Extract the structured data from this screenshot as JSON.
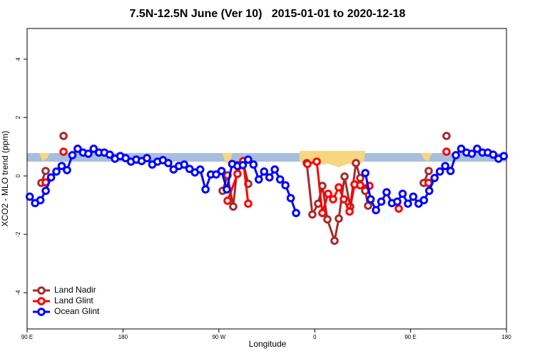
{
  "chart_data": {
    "type": "line",
    "title": "7.5N-12.5N June (Ver 10)   2015-01-01 to 2020-12-18",
    "x_label": "Longitude",
    "y_label": "XCO2 - MLO trend (ppm)",
    "xlim": [
      90,
      540
    ],
    "ylim": [
      -5.24,
      5.05
    ],
    "xticks": [
      {
        "value": 90,
        "label": "90 E"
      },
      {
        "value": 180,
        "label": "180"
      },
      {
        "value": 270,
        "label": "90 W"
      },
      {
        "value": 360,
        "label": "0"
      },
      {
        "value": 450,
        "label": "90 E"
      },
      {
        "value": 540,
        "label": "180"
      }
    ],
    "yticks": [
      -4,
      -2,
      0,
      2,
      4
    ],
    "legend": "bottom-left",
    "series": [
      {
        "name": "Land Nadir",
        "color": "#a52a2a",
        "x": [
          103.4,
          107.4,
          116,
          124.2,
          200,
          273.5,
          278.2,
          283.5,
          287.5,
          292.9,
          297.6,
          325,
          352.5,
          357.8,
          363.2,
          367.2,
          371.9,
          378.6,
          382.6,
          388,
          393.3,
          398.7,
          402.7,
          407.4,
          410.1,
          430,
          462.3,
          467,
          475,
          483.7
        ],
        "values": [
          -0.24,
          0.17,
          null,
          1.37,
          null,
          -0.51,
          0.02,
          -1.05,
          0.37,
          0.46,
          -0.27,
          null,
          0.44,
          -1.32,
          -0.95,
          -0.34,
          -1.49,
          -2.22,
          -1.46,
          -0.02,
          -1.05,
          0.44,
          -0.07,
          -0.51,
          -1.02,
          null,
          -0.24,
          0.17,
          null,
          1.37
        ]
      },
      {
        "name": "Land Glint",
        "color": "#ff0000",
        "x": [
          107.4,
          116,
          124.2,
          200,
          278.2,
          287.5,
          292.9,
          297.6,
          325,
          353.2,
          361.9,
          367.2,
          372.6,
          377.3,
          382.6,
          387.3,
          392.7,
          397.4,
          402.7,
          411.4,
          425,
          438.9,
          450,
          466.9,
          475,
          483.7
        ],
        "values": [
          -0.22,
          null,
          0.83,
          null,
          -0.85,
          0.07,
          0.51,
          -0.95,
          null,
          0.41,
          0.49,
          -1.27,
          -0.61,
          -0.8,
          -0.39,
          -0.8,
          -1.22,
          -0.29,
          -0.32,
          -0.34,
          null,
          -1.12,
          null,
          -0.24,
          null,
          0.83
        ]
      },
      {
        "name": "Ocean Glint",
        "color": "#0000ff",
        "x": [
          92.5,
          97.5,
          102.5,
          107.5,
          112.5,
          117.5,
          122.5,
          127.5,
          132.5,
          137.5,
          142.5,
          147.5,
          152.5,
          157.5,
          162.5,
          167.5,
          172.5,
          177.5,
          182.5,
          187.5,
          192.5,
          197.5,
          202.5,
          207.5,
          212.5,
          217.5,
          222.5,
          227.5,
          232.5,
          237.5,
          242.5,
          247.5,
          252.5,
          257.5,
          262.5,
          267.5,
          272.5,
          277.5,
          282.5,
          287.5,
          292.5,
          297.5,
          302.5,
          307.5,
          312.5,
          317.5,
          322.5,
          327.5,
          332.5,
          337.5,
          342.5,
          375,
          407.5,
          412.5,
          417.5,
          422.5,
          427.5,
          432.5,
          437.5,
          442.5,
          447.5,
          452.5,
          457.5,
          462.5,
          467.5,
          472.5,
          477.5,
          482.5,
          487.5,
          492.5,
          497.5,
          502.5,
          507.5,
          512.5,
          517.5,
          522.5,
          527.5,
          532.5,
          537.5
        ],
        "values": [
          -0.71,
          -0.93,
          -0.83,
          -0.51,
          -0.05,
          0.15,
          0.34,
          0.2,
          0.71,
          0.93,
          0.8,
          0.76,
          0.93,
          0.8,
          0.8,
          0.73,
          0.59,
          0.68,
          0.61,
          0.49,
          0.56,
          0.51,
          0.61,
          0.39,
          0.49,
          0.54,
          0.44,
          0.22,
          0.34,
          0.39,
          0.24,
          0.12,
          0.22,
          -0.46,
          0.05,
          0.05,
          0.17,
          -0.46,
          0.41,
          0.34,
          0.37,
          0.56,
          0.39,
          -0.12,
          0.15,
          -0.05,
          0.22,
          -0.12,
          -0.32,
          -0.76,
          -1.27,
          null,
          0.1,
          -0.8,
          -1.17,
          -0.88,
          -0.56,
          -0.93,
          -0.88,
          -0.61,
          -0.95,
          -0.71,
          -0.95,
          -0.83,
          -0.51,
          -0.07,
          0.15,
          0.34,
          0.17,
          0.71,
          0.93,
          0.8,
          0.76,
          0.93,
          0.8,
          0.8,
          0.73,
          0.59,
          0.68
        ]
      }
    ]
  }
}
